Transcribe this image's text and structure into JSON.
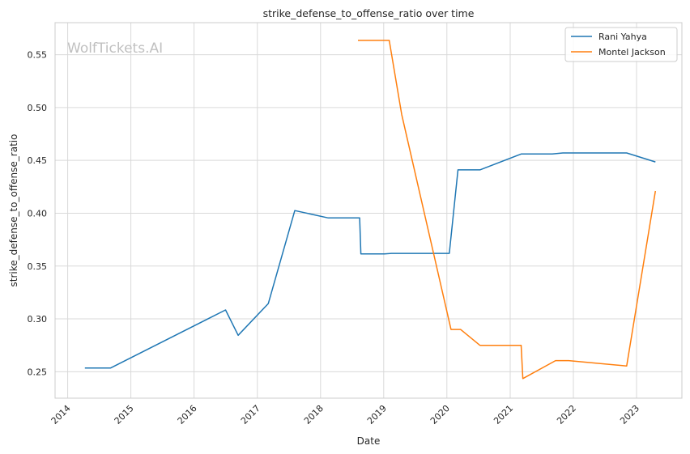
{
  "chart_data": {
    "type": "line",
    "title": "strike_defense_to_offense_ratio over time",
    "xlabel": "Date",
    "ylabel": "strike_defense_to_offense_ratio",
    "watermark": "WolfTickets.AI",
    "xlim": [
      "2013-10-20",
      "2023-09-20"
    ],
    "ylim": [
      0.225,
      0.5803
    ],
    "x_ticks": [
      "2014",
      "2015",
      "2016",
      "2017",
      "2018",
      "2019",
      "2020",
      "2021",
      "2022",
      "2023"
    ],
    "y_ticks": [
      "0.25",
      "0.30",
      "0.35",
      "0.40",
      "0.45",
      "0.50",
      "0.55"
    ],
    "grid": true,
    "legend_position": "top-right",
    "series": [
      {
        "name": "Rani Yahya",
        "color": "#1f77b4",
        "points": [
          [
            "2014-04-10",
            0.2535
          ],
          [
            "2014-09-05",
            0.2535
          ],
          [
            "2016-07-01",
            0.3085
          ],
          [
            "2016-09-12",
            0.2845
          ],
          [
            "2017-03-05",
            0.3145
          ],
          [
            "2017-08-05",
            0.4025
          ],
          [
            "2018-02-15",
            0.3955
          ],
          [
            "2018-08-15",
            0.3955
          ],
          [
            "2018-08-22",
            0.3615
          ],
          [
            "2019-01-05",
            0.3615
          ],
          [
            "2019-02-15",
            0.362
          ],
          [
            "2020-01-15",
            0.362
          ],
          [
            "2020-03-05",
            0.441
          ],
          [
            "2020-07-10",
            0.441
          ],
          [
            "2021-03-05",
            0.456
          ],
          [
            "2021-09-01",
            0.456
          ],
          [
            "2021-11-01",
            0.457
          ],
          [
            "2022-11-05",
            0.457
          ],
          [
            "2023-04-20",
            0.4485
          ]
        ]
      },
      {
        "name": "Montel Jackson",
        "color": "#ff7f0e",
        "points": [
          [
            "2018-08-05",
            0.5635
          ],
          [
            "2019-02-02",
            0.5635
          ],
          [
            "2019-04-15",
            0.4935
          ],
          [
            "2020-01-25",
            0.29
          ],
          [
            "2020-03-20",
            0.29
          ],
          [
            "2020-07-10",
            0.275
          ],
          [
            "2021-03-05",
            0.275
          ],
          [
            "2021-03-15",
            0.2435
          ],
          [
            "2021-09-20",
            0.2605
          ],
          [
            "2021-12-05",
            0.2605
          ],
          [
            "2022-11-05",
            0.2555
          ],
          [
            "2023-04-20",
            0.421
          ]
        ]
      }
    ]
  }
}
